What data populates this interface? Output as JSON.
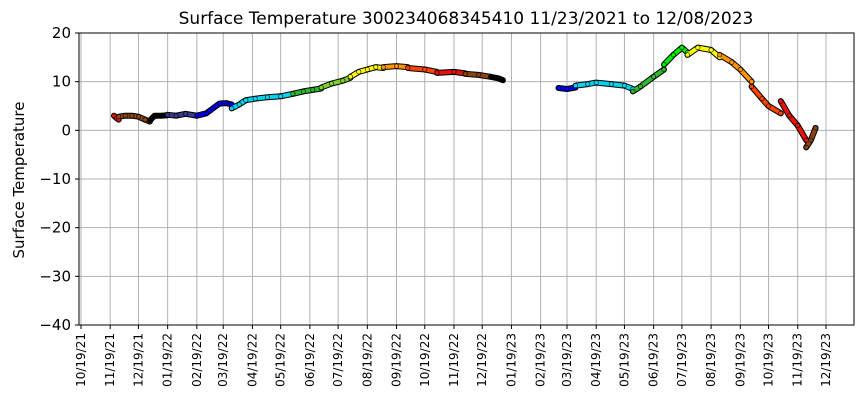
{
  "chart_data": {
    "type": "scatter",
    "title": "Surface Temperature 300234068345410  11/23/2021 to 12/08/2023",
    "ylabel": "Surface Temperature",
    "xlabel": "",
    "ylim": [
      -40,
      20
    ],
    "yticks": [
      -40,
      -30,
      -20,
      -10,
      0,
      10,
      20
    ],
    "xlim": [
      "2021-10-19",
      "2023-12-19"
    ],
    "xtick_labels": [
      "10/19/21",
      "11/19/21",
      "12/19/21",
      "01/19/22",
      "02/19/22",
      "03/19/22",
      "04/19/22",
      "05/19/22",
      "06/19/22",
      "07/19/22",
      "08/19/22",
      "09/19/22",
      "10/19/22",
      "11/19/22",
      "12/19/22",
      "01/19/23",
      "02/19/23",
      "03/19/23",
      "04/19/23",
      "05/19/23",
      "06/19/23",
      "07/19/23",
      "08/19/23",
      "09/19/23",
      "10/19/23",
      "11/19/23",
      "12/19/23"
    ],
    "xtick_dates": [
      "2021-10-19",
      "2021-11-19",
      "2021-12-19",
      "2022-01-19",
      "2022-02-19",
      "2022-03-19",
      "2022-04-19",
      "2022-05-19",
      "2022-06-19",
      "2022-07-19",
      "2022-08-19",
      "2022-09-19",
      "2022-10-19",
      "2022-11-19",
      "2022-12-19",
      "2023-01-19",
      "2023-02-19",
      "2023-03-19",
      "2023-04-19",
      "2023-05-19",
      "2023-06-19",
      "2023-07-19",
      "2023-08-19",
      "2023-09-19",
      "2023-10-19",
      "2023-11-19",
      "2023-12-19"
    ],
    "grid": true,
    "segments": [
      {
        "color": "#e8120c",
        "points": [
          [
            "2021-11-23",
            3.0
          ],
          [
            "2021-11-26",
            2.5
          ],
          [
            "2021-11-28",
            2.2
          ]
        ]
      },
      {
        "color": "#8b4513",
        "points": [
          [
            "2021-11-28",
            2.8
          ],
          [
            "2021-12-05",
            3.0
          ],
          [
            "2021-12-12",
            3.0
          ],
          [
            "2021-12-19",
            2.8
          ],
          [
            "2021-12-26",
            2.2
          ],
          [
            "2021-12-31",
            1.8
          ]
        ]
      },
      {
        "color": "#000000",
        "points": [
          [
            "2021-12-31",
            2.0
          ],
          [
            "2022-01-05",
            3.0
          ],
          [
            "2022-01-12",
            3.0
          ],
          [
            "2022-01-19",
            3.1
          ]
        ]
      },
      {
        "color": "#3a3a8c",
        "points": [
          [
            "2022-01-19",
            3.2
          ],
          [
            "2022-01-28",
            3.0
          ],
          [
            "2022-02-07",
            3.4
          ],
          [
            "2022-02-19",
            3.0
          ]
        ]
      },
      {
        "color": "#0000ee",
        "points": [
          [
            "2022-02-19",
            3.0
          ],
          [
            "2022-03-01",
            3.5
          ],
          [
            "2022-03-08",
            4.5
          ],
          [
            "2022-03-15",
            5.5
          ],
          [
            "2022-03-22",
            5.6
          ],
          [
            "2022-03-28",
            5.3
          ]
        ]
      },
      {
        "color": "#00d4ee",
        "points": [
          [
            "2022-03-28",
            4.5
          ],
          [
            "2022-04-05",
            5.3
          ],
          [
            "2022-04-12",
            6.2
          ],
          [
            "2022-04-22",
            6.5
          ],
          [
            "2022-05-05",
            6.8
          ],
          [
            "2022-05-19",
            7.0
          ],
          [
            "2022-06-01",
            7.5
          ]
        ]
      },
      {
        "color": "#2db82d",
        "points": [
          [
            "2022-06-01",
            7.5
          ],
          [
            "2022-06-12",
            8.0
          ],
          [
            "2022-06-22",
            8.3
          ],
          [
            "2022-07-01",
            8.6
          ]
        ]
      },
      {
        "color": "#7fd02a",
        "points": [
          [
            "2022-07-01",
            8.8
          ],
          [
            "2022-07-12",
            9.6
          ],
          [
            "2022-07-24",
            10.2
          ],
          [
            "2022-08-01",
            10.8
          ]
        ]
      },
      {
        "color": "#ffff00",
        "points": [
          [
            "2022-08-01",
            11.0
          ],
          [
            "2022-08-10",
            12.0
          ],
          [
            "2022-08-19",
            12.5
          ],
          [
            "2022-08-28",
            13.0
          ],
          [
            "2022-09-05",
            12.8
          ]
        ]
      },
      {
        "color": "#ff9500",
        "points": [
          [
            "2022-09-05",
            13.0
          ],
          [
            "2022-09-19",
            13.2
          ],
          [
            "2022-10-01",
            13.0
          ]
        ]
      },
      {
        "color": "#ff4500",
        "points": [
          [
            "2022-10-01",
            12.8
          ],
          [
            "2022-10-19",
            12.5
          ],
          [
            "2022-11-01",
            12.0
          ]
        ]
      },
      {
        "color": "#e8120c",
        "points": [
          [
            "2022-11-01",
            11.8
          ],
          [
            "2022-11-19",
            12.0
          ],
          [
            "2022-12-01",
            11.7
          ]
        ]
      },
      {
        "color": "#8b4513",
        "points": [
          [
            "2022-12-01",
            11.6
          ],
          [
            "2022-12-15",
            11.4
          ],
          [
            "2022-12-28",
            11.0
          ]
        ]
      },
      {
        "color": "#000000",
        "points": [
          [
            "2022-12-28",
            11.0
          ],
          [
            "2023-01-05",
            10.7
          ],
          [
            "2023-01-10",
            10.3
          ]
        ]
      },
      {
        "color": "#0000ee",
        "points": [
          [
            "2023-03-10",
            8.7
          ],
          [
            "2023-03-19",
            8.5
          ],
          [
            "2023-03-28",
            8.8
          ]
        ]
      },
      {
        "color": "#00d4ee",
        "points": [
          [
            "2023-03-28",
            9.2
          ],
          [
            "2023-04-10",
            9.5
          ],
          [
            "2023-04-19",
            9.8
          ],
          [
            "2023-05-05",
            9.5
          ],
          [
            "2023-05-19",
            9.2
          ],
          [
            "2023-05-28",
            8.5
          ]
        ]
      },
      {
        "color": "#2db82d",
        "points": [
          [
            "2023-05-28",
            8.0
          ],
          [
            "2023-06-05",
            9.0
          ],
          [
            "2023-06-19",
            11.0
          ],
          [
            "2023-06-30",
            12.5
          ]
        ]
      },
      {
        "color": "#00ee00",
        "points": [
          [
            "2023-06-30",
            13.5
          ],
          [
            "2023-07-10",
            15.5
          ],
          [
            "2023-07-19",
            17.0
          ],
          [
            "2023-07-25",
            16.0
          ]
        ]
      },
      {
        "color": "#ffff00",
        "points": [
          [
            "2023-07-25",
            15.5
          ],
          [
            "2023-08-05",
            17.0
          ],
          [
            "2023-08-19",
            16.5
          ],
          [
            "2023-08-28",
            15.0
          ]
        ]
      },
      {
        "color": "#ff9500",
        "points": [
          [
            "2023-08-28",
            15.5
          ],
          [
            "2023-09-10",
            14.0
          ],
          [
            "2023-09-19",
            12.5
          ],
          [
            "2023-10-01",
            10.0
          ]
        ]
      },
      {
        "color": "#ff4500",
        "points": [
          [
            "2023-10-01",
            9.0
          ],
          [
            "2023-10-12",
            6.5
          ],
          [
            "2023-10-19",
            5.0
          ],
          [
            "2023-11-01",
            3.5
          ]
        ]
      },
      {
        "color": "#e8120c",
        "points": [
          [
            "2023-11-01",
            6.0
          ],
          [
            "2023-11-10",
            3.0
          ],
          [
            "2023-11-19",
            1.0
          ],
          [
            "2023-11-28",
            -2.0
          ]
        ]
      },
      {
        "color": "#8b4513",
        "points": [
          [
            "2023-11-28",
            -3.5
          ],
          [
            "2023-12-03",
            -2.0
          ],
          [
            "2023-12-08",
            0.5
          ]
        ]
      }
    ]
  }
}
